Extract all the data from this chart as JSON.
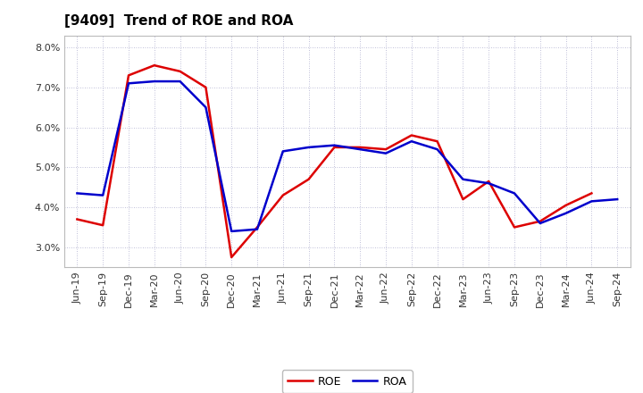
{
  "title": "[9409]  Trend of ROE and ROA",
  "x_labels": [
    "Jun-19",
    "Sep-19",
    "Dec-19",
    "Mar-20",
    "Jun-20",
    "Sep-20",
    "Dec-20",
    "Mar-21",
    "Jun-21",
    "Sep-21",
    "Dec-21",
    "Mar-22",
    "Jun-22",
    "Sep-22",
    "Dec-22",
    "Mar-23",
    "Jun-23",
    "Sep-23",
    "Dec-23",
    "Mar-24",
    "Jun-24",
    "Sep-24"
  ],
  "roe": [
    3.7,
    3.55,
    7.3,
    7.55,
    7.4,
    7.0,
    2.75,
    3.5,
    4.3,
    4.7,
    5.5,
    5.5,
    5.45,
    5.8,
    5.65,
    4.2,
    4.65,
    3.5,
    3.65,
    4.05,
    4.35,
    null
  ],
  "roa": [
    4.35,
    4.3,
    7.1,
    7.15,
    7.15,
    6.5,
    3.4,
    3.45,
    5.4,
    5.5,
    5.55,
    5.45,
    5.35,
    5.65,
    5.45,
    4.7,
    4.6,
    4.35,
    3.6,
    3.85,
    4.15,
    4.2
  ],
  "roe_color": "#dd0000",
  "roa_color": "#0000cc",
  "ylim": [
    2.5,
    8.3
  ],
  "yticks": [
    3.0,
    4.0,
    5.0,
    6.0,
    7.0,
    8.0
  ],
  "background_color": "#ffffff",
  "grid_color": "#aaaacc",
  "title_fontsize": 11,
  "axis_fontsize": 8,
  "legend_fontsize": 9,
  "line_width": 1.8
}
